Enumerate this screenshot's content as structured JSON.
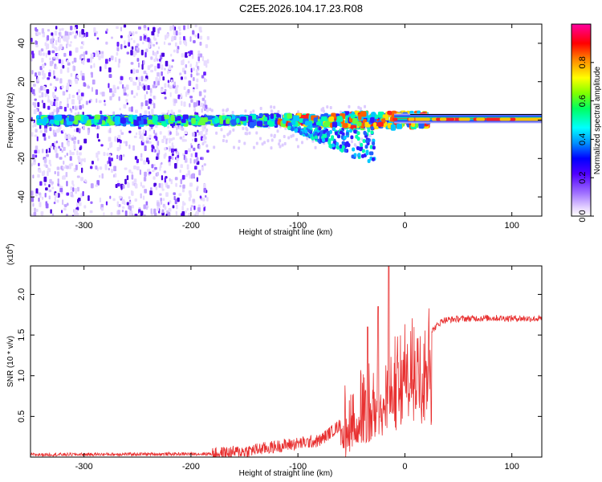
{
  "title": "C2E5.2026.104.17.23.R08",
  "colors": {
    "snr_line": "#e83030",
    "axis": "#000000"
  },
  "chart_data": [
    {
      "type": "heatmap",
      "name": "spectrogram",
      "xlabel": "Height of straight line (km)",
      "ylabel": "Frequency (Hz)",
      "xlim": [
        -350,
        128
      ],
      "ylim": [
        -50,
        50
      ],
      "xticks": [
        -300,
        -200,
        -100,
        0,
        100
      ],
      "xtick_labels": [
        "-300",
        "-200",
        "-100",
        "0",
        "100"
      ],
      "yticks": [
        -40,
        -20,
        0,
        20,
        40
      ],
      "ytick_labels": [
        "-40",
        "-20",
        "0",
        "20",
        "40"
      ],
      "colorbar": {
        "label": "Normalized spectral amplitude",
        "range": [
          0,
          1
        ],
        "ticks": [
          0.0,
          0.2,
          0.4,
          0.6,
          0.8
        ],
        "tick_labels": [
          "0.0",
          "0.2",
          "0.4",
          "0.6",
          "0.8"
        ]
      },
      "noise_region_km": [
        -350,
        -185
      ],
      "carrier_freq_hz": 0
    },
    {
      "type": "line",
      "name": "snr",
      "xlabel": "Height of straight line (km)",
      "ylabel": "SNR (10 * v/v)",
      "y_multiplier_label": "(x10",
      "y_multiplier_exp": "4",
      "y_multiplier_close": ")",
      "xlim": [
        -350,
        128
      ],
      "ylim": [
        0,
        2.35
      ],
      "xticks": [
        -300,
        -200,
        -100,
        0,
        100
      ],
      "xtick_labels": [
        "-300",
        "-200",
        "-100",
        "0",
        "100"
      ],
      "yticks": [
        0.5,
        1.0,
        1.5,
        2.0
      ],
      "ytick_labels": [
        "0.5",
        "1.0",
        "1.5",
        "2.0"
      ],
      "series": [
        {
          "name": "SNR",
          "x": [
            -350,
            -180,
            -150,
            -110,
            -80,
            -60,
            -40,
            -25,
            -15,
            -5,
            5,
            15,
            25,
            35,
            50,
            80,
            128
          ],
          "y": [
            0.03,
            0.04,
            0.07,
            0.15,
            0.2,
            0.4,
            0.6,
            0.8,
            0.95,
            1.1,
            1.2,
            1.35,
            1.55,
            1.68,
            1.7,
            1.71,
            1.7
          ]
        }
      ]
    }
  ]
}
